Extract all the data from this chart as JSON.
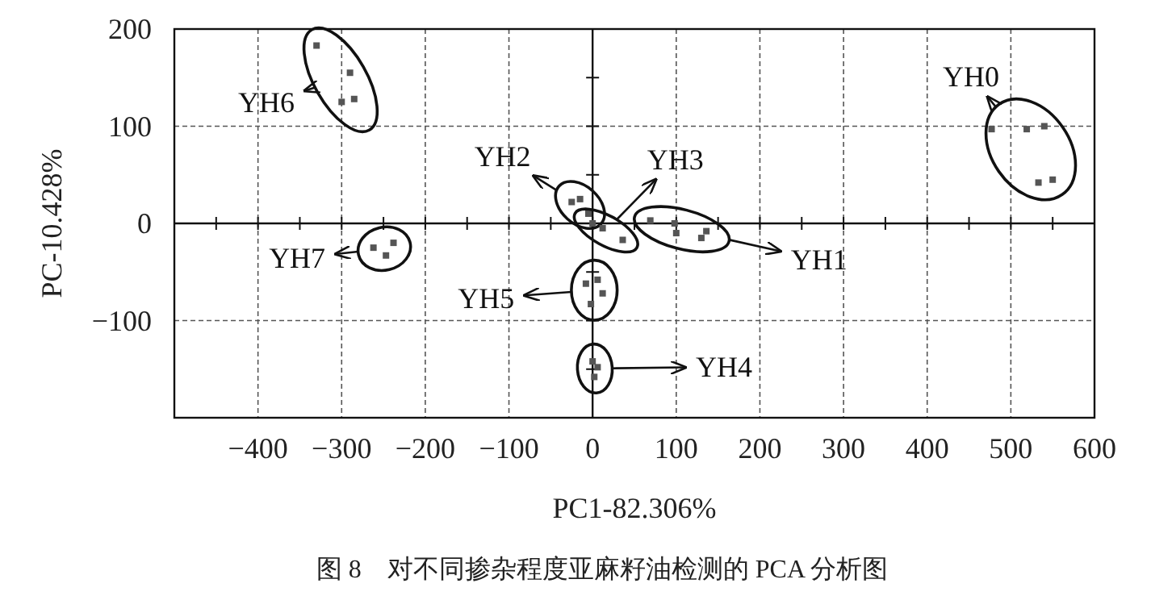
{
  "chart_data": {
    "type": "scatter",
    "xlabel": "PC1-82.306%",
    "ylabel": "PC-10.428%",
    "annotations": [
      "图 8　对不同掺杂程度亚麻籽油检测的 PCA 分析图"
    ],
    "xlim": [
      -500,
      600
    ],
    "ylim": [
      -200,
      200
    ],
    "xticks": [
      -400,
      -300,
      -200,
      -100,
      0,
      100,
      200,
      300,
      400,
      500,
      600
    ],
    "yticks": [
      -100,
      0,
      100,
      200
    ],
    "grid": true,
    "marker": "square",
    "series": [
      {
        "name": "YH0",
        "color": "#555555",
        "x": [
          477,
          519,
          540,
          533,
          550
        ],
        "values": [
          97,
          97,
          100,
          42,
          45
        ]
      },
      {
        "name": "YH1",
        "color": "#555555",
        "x": [
          69,
          98,
          136,
          100,
          130
        ],
        "values": [
          3,
          0,
          -8,
          -10,
          -15
        ]
      },
      {
        "name": "YH2",
        "color": "#555555",
        "x": [
          -25,
          -5,
          -15
        ],
        "values": [
          22,
          10,
          25
        ]
      },
      {
        "name": "YH3",
        "color": "#555555",
        "x": [
          0,
          12,
          36
        ],
        "values": [
          0,
          -5,
          -17
        ]
      },
      {
        "name": "YH4",
        "color": "#555555",
        "x": [
          0,
          2,
          6
        ],
        "values": [
          -142,
          -158,
          -148
        ]
      },
      {
        "name": "YH5",
        "color": "#555555",
        "x": [
          -8,
          6,
          12,
          -2
        ],
        "values": [
          -62,
          -58,
          -72,
          -83
        ]
      },
      {
        "name": "YH6",
        "color": "#555555",
        "x": [
          -330,
          -290,
          -300,
          -285
        ],
        "values": [
          183,
          155,
          125,
          128
        ]
      },
      {
        "name": "YH7",
        "color": "#555555",
        "x": [
          -262,
          -247,
          -238
        ],
        "values": [
          -25,
          -33,
          -20
        ]
      }
    ]
  }
}
